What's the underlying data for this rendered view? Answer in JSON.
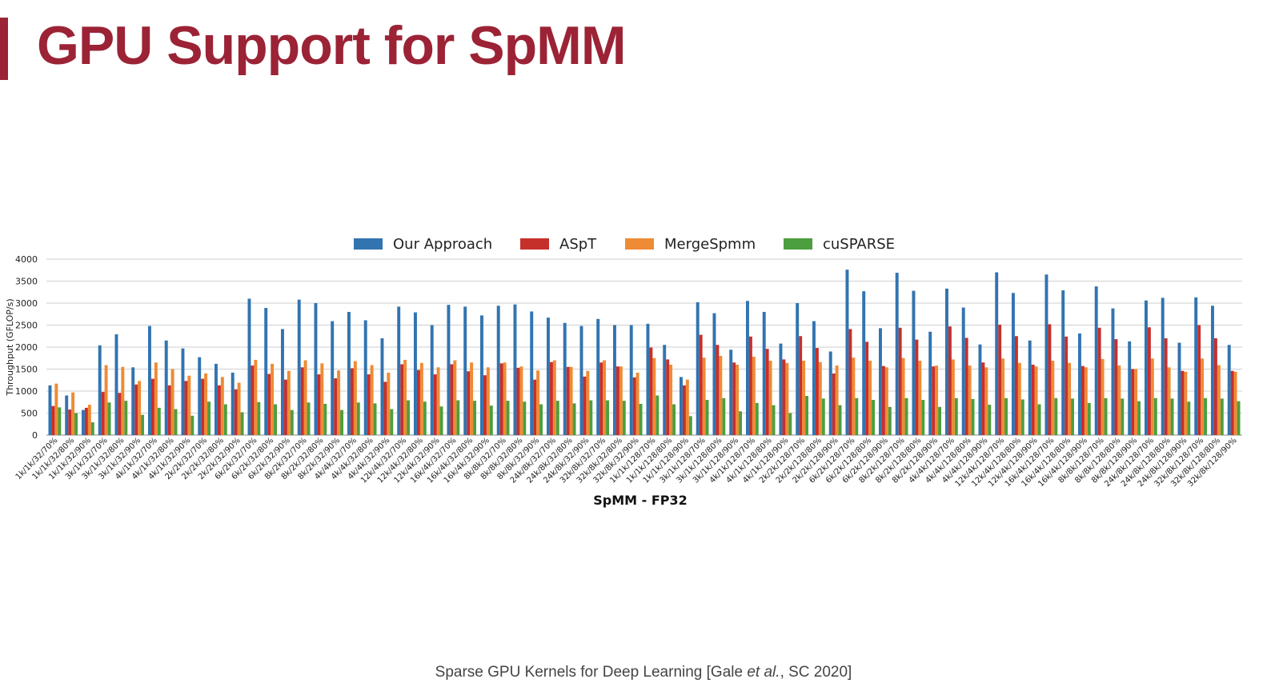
{
  "slide": {
    "title": "GPU Support for SpMM",
    "title_color": "#9b2335",
    "caption_before": "Sparse GPU Kernels for Deep Learning [Gale ",
    "caption_italic": "et al.",
    "caption_after": ", SC 2020]"
  },
  "chart_data": {
    "type": "bar",
    "title": "",
    "xlabel": "SpMM - FP32",
    "ylabel": "Throughput (GFLOP/s)",
    "ylim": [
      0,
      4000
    ],
    "yticks": [
      "0",
      "500",
      "1000",
      "1500",
      "2000",
      "2500",
      "3000",
      "3500",
      "4000"
    ],
    "grid": true,
    "legend_position": "top-center",
    "categories": [
      "1k/1k/32/70%",
      "1k/1k/32/80%",
      "1k/1k/32/90%",
      "3k/1k/32/70%",
      "3k/1k/32/80%",
      "3k/1k/32/90%",
      "4k/1k/32/70%",
      "4k/1k/32/80%",
      "4k/1k/32/90%",
      "2k/2k/32/70%",
      "2k/2k/32/80%",
      "2k/2k/32/90%",
      "6k/2k/32/70%",
      "6k/2k/32/80%",
      "6k/2k/32/90%",
      "8k/2k/32/70%",
      "8k/2k/32/80%",
      "8k/2k/32/90%",
      "4k/4k/32/70%",
      "4k/4k/32/80%",
      "4k/4k/32/90%",
      "12k/4k/32/70%",
      "12k/4k/32/80%",
      "12k/4k/32/90%",
      "16k/4k/32/70%",
      "16k/4k/32/80%",
      "16k/4k/32/90%",
      "8k/8k/32/70%",
      "8k/8k/32/80%",
      "8k/8k/32/90%",
      "24k/8k/32/70%",
      "24k/8k/32/80%",
      "24k/8k/32/90%",
      "32k/8k/32/70%",
      "32k/8k/32/80%",
      "32k/8k/32/90%",
      "1k/1k/128/70%",
      "1k/1k/128/80%",
      "1k/1k/128/90%",
      "3k/1k/128/70%",
      "3k/1k/128/80%",
      "3k/1k/128/90%",
      "4k/1k/128/70%",
      "4k/1k/128/80%",
      "4k/1k/128/90%",
      "2k/2k/128/70%",
      "2k/2k/128/80%",
      "2k/2k/128/90%",
      "6k/2k/128/70%",
      "6k/2k/128/80%",
      "6k/2k/128/90%",
      "8k/2k/128/70%",
      "8k/2k/128/80%",
      "8k/2k/128/90%",
      "4k/4k/128/70%",
      "4k/4k/128/80%",
      "4k/4k/128/90%",
      "12k/4k/128/70%",
      "12k/4k/128/80%",
      "12k/4k/128/90%",
      "16k/4k/128/70%",
      "16k/4k/128/80%",
      "16k/4k/128/90%",
      "8k/8k/128/70%",
      "8k/8k/128/80%",
      "8k/8k/128/90%",
      "24k/8k/128/70%",
      "24k/8k/128/80%",
      "24k/8k/128/90%",
      "32k/8k/128/70%",
      "32k/8k/128/80%",
      "32k/8k/128/90%"
    ],
    "series": [
      {
        "name": "Our Approach",
        "color": "#3274b0",
        "values": [
          1130,
          900,
          570,
          2040,
          2290,
          1540,
          2480,
          2150,
          1970,
          1770,
          1620,
          1420,
          3100,
          2890,
          2410,
          3080,
          3000,
          2590,
          2800,
          2610,
          2200,
          2920,
          2790,
          2500,
          2960,
          2920,
          2720,
          2940,
          2970,
          2810,
          2670,
          2550,
          2480,
          2640,
          2500,
          2500,
          2530,
          2050,
          1320,
          3020,
          2770,
          1940,
          3050,
          2800,
          2080,
          3000,
          2590,
          1900,
          3760,
          3270,
          2430,
          3690,
          3280,
          2350,
          3330,
          2900,
          2060,
          3700,
          3230,
          2150,
          3650,
          3290,
          2310,
          3380,
          2880,
          2130,
          3060,
          3120,
          2100,
          3130,
          2940,
          2050
        ]
      },
      {
        "name": "ASpT",
        "color": "#c6302b",
        "values": [
          660,
          580,
          620,
          980,
          960,
          1150,
          1280,
          1130,
          1230,
          1280,
          1130,
          1040,
          1580,
          1390,
          1260,
          1540,
          1380,
          1290,
          1520,
          1380,
          1210,
          1610,
          1480,
          1380,
          1610,
          1450,
          1360,
          1630,
          1530,
          1260,
          1660,
          1550,
          1330,
          1650,
          1560,
          1310,
          1990,
          1720,
          1130,
          2280,
          2050,
          1650,
          2240,
          1960,
          1720,
          2250,
          1980,
          1400,
          2410,
          2120,
          1570,
          2440,
          2170,
          1560,
          2470,
          2210,
          1650,
          2510,
          2250,
          1600,
          2520,
          2240,
          1570,
          2440,
          2180,
          1500,
          2450,
          2200,
          1460,
          2500,
          2200,
          1460
        ]
      },
      {
        "name": "MergeSpmm",
        "color": "#ef8b34",
        "values": [
          1170,
          970,
          690,
          1590,
          1550,
          1230,
          1650,
          1500,
          1350,
          1400,
          1320,
          1190,
          1710,
          1620,
          1460,
          1700,
          1630,
          1470,
          1680,
          1590,
          1420,
          1710,
          1640,
          1540,
          1700,
          1650,
          1540,
          1650,
          1560,
          1470,
          1700,
          1550,
          1460,
          1700,
          1560,
          1420,
          1750,
          1600,
          1260,
          1760,
          1800,
          1600,
          1780,
          1690,
          1640,
          1690,
          1660,
          1580,
          1760,
          1690,
          1540,
          1750,
          1690,
          1580,
          1720,
          1580,
          1540,
          1740,
          1640,
          1560,
          1690,
          1640,
          1540,
          1730,
          1580,
          1500,
          1740,
          1540,
          1440,
          1740,
          1590,
          1440
        ]
      },
      {
        "name": "cuSPARSE",
        "color": "#4c9e3e",
        "values": [
          630,
          500,
          290,
          740,
          780,
          460,
          620,
          590,
          440,
          760,
          700,
          520,
          750,
          700,
          570,
          740,
          710,
          570,
          740,
          720,
          590,
          790,
          760,
          650,
          790,
          780,
          670,
          780,
          760,
          700,
          780,
          720,
          790,
          790,
          780,
          710,
          900,
          700,
          430,
          800,
          840,
          540,
          730,
          680,
          500,
          890,
          830,
          680,
          840,
          800,
          640,
          840,
          800,
          640,
          840,
          820,
          690,
          840,
          810,
          700,
          840,
          830,
          730,
          840,
          830,
          770,
          840,
          830,
          760,
          840,
          830,
          770
        ]
      }
    ]
  }
}
